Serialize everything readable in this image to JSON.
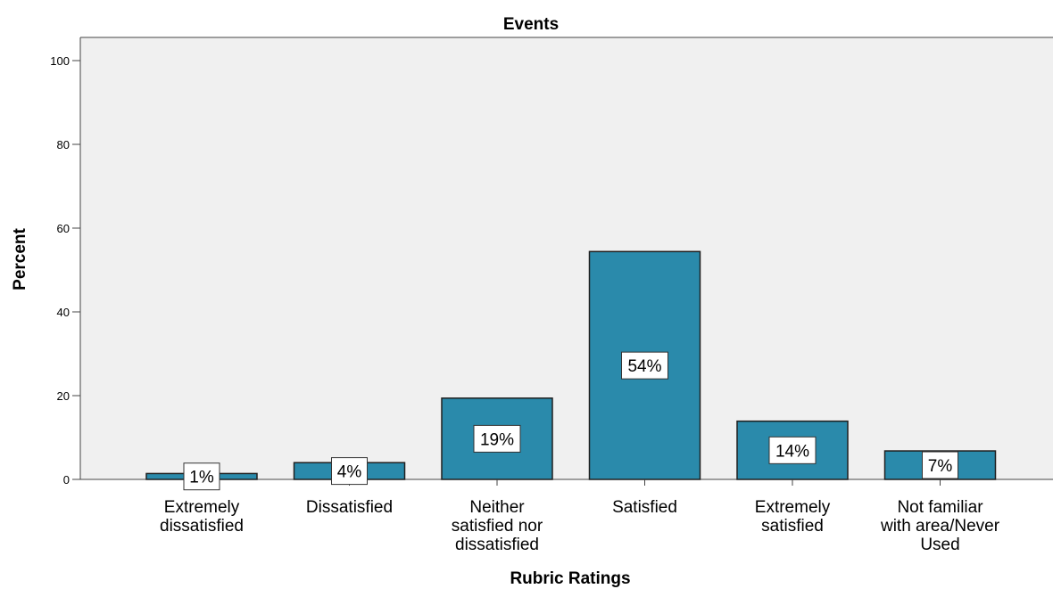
{
  "chart_data": {
    "type": "bar",
    "title": "Events",
    "xlabel": "Rubric Ratings",
    "ylabel": "Percent",
    "ylim": [
      0,
      100
    ],
    "yticks": [
      0,
      20,
      40,
      60,
      80,
      100
    ],
    "categories": [
      [
        "Extremely",
        "dissatisfied"
      ],
      [
        "Dissatisfied"
      ],
      [
        "Neither",
        "satisfied nor",
        "dissatisfied"
      ],
      [
        "Satisfied"
      ],
      [
        "Extremely",
        "satisfied"
      ],
      [
        "Not familiar",
        "with area/Never",
        "Used"
      ]
    ],
    "values": [
      1.4,
      4.0,
      19.4,
      54.4,
      13.9,
      6.8
    ],
    "data_labels": [
      "1%",
      "4%",
      "19%",
      "54%",
      "14%",
      "7%"
    ],
    "grid": false,
    "colors": {
      "bar": "#2a8aab",
      "plot_background": "#f0f0f0",
      "label_box": "#ffffff"
    }
  }
}
